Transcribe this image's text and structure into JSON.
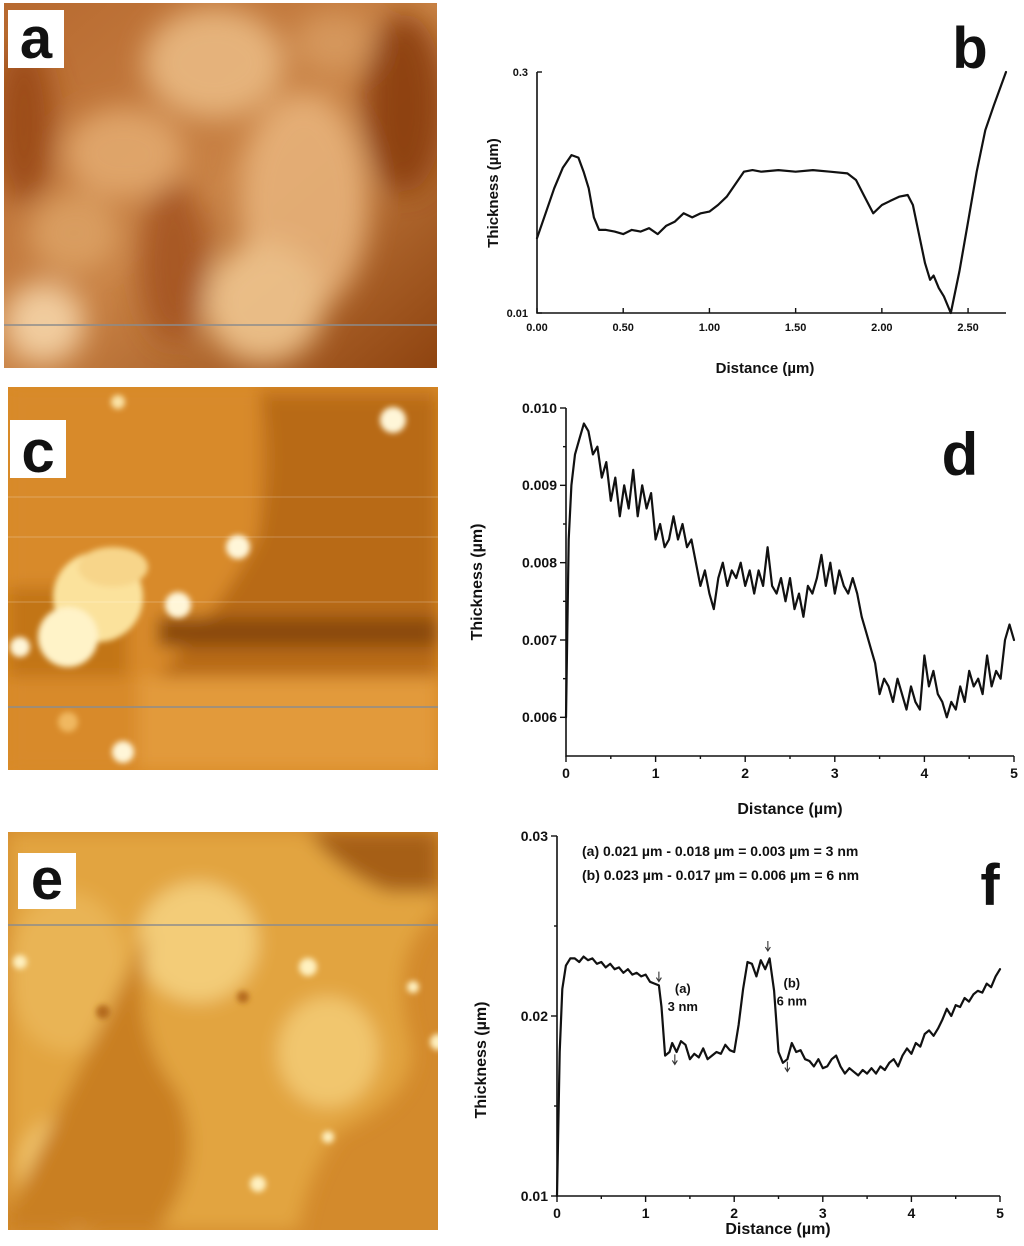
{
  "panels": {
    "a": {
      "letter": "a"
    },
    "c": {
      "letter": "c"
    },
    "e": {
      "letter": "e"
    }
  },
  "colors": {
    "afm_a_dark": "#8a3e0c",
    "afm_a_light": "#f3cfa0",
    "afm_c_dark": "#6e2f05",
    "afm_c_light": "#fff6d8",
    "afm_e_dark": "#7a3a06",
    "afm_e_light": "#fff1c0",
    "profile_line": "#8c8c8c",
    "curve": "#111111"
  },
  "chart_data": [
    {
      "id": "b",
      "letter": "b",
      "type": "line",
      "xlabel": "Distance (µm)",
      "ylabel": "Thickness (µm)",
      "xlim": [
        0,
        2.72
      ],
      "ylim": [
        0.01,
        0.3
      ],
      "xticks": [
        0,
        0.5,
        1.0,
        1.5,
        2.0,
        2.5
      ],
      "xtick_labels": [
        "0.00",
        "0.50",
        "1.00",
        "1.50",
        "2.00",
        "2.50"
      ],
      "yticks": [
        0.01,
        0.3
      ],
      "ytick_labels": [
        "0.01",
        "0.3"
      ],
      "series": [
        {
          "x": [
            0,
            0.05,
            0.1,
            0.15,
            0.2,
            0.24,
            0.27,
            0.3,
            0.33,
            0.36,
            0.4,
            0.45,
            0.5,
            0.55,
            0.6,
            0.65,
            0.7,
            0.75,
            0.8,
            0.85,
            0.9,
            0.95,
            1.0,
            1.05,
            1.1,
            1.15,
            1.2,
            1.25,
            1.3,
            1.4,
            1.5,
            1.6,
            1.7,
            1.8,
            1.85,
            1.9,
            1.95,
            2.0,
            2.05,
            2.1,
            2.15,
            2.18,
            2.22,
            2.25,
            2.28,
            2.3,
            2.33,
            2.36,
            2.4,
            2.45,
            2.5,
            2.55,
            2.6,
            2.65,
            2.72
          ],
          "y": [
            0.1,
            0.13,
            0.16,
            0.185,
            0.2,
            0.197,
            0.18,
            0.16,
            0.125,
            0.11,
            0.11,
            0.108,
            0.105,
            0.11,
            0.108,
            0.112,
            0.105,
            0.115,
            0.12,
            0.13,
            0.125,
            0.13,
            0.132,
            0.14,
            0.15,
            0.165,
            0.18,
            0.182,
            0.18,
            0.182,
            0.18,
            0.182,
            0.18,
            0.178,
            0.17,
            0.15,
            0.13,
            0.14,
            0.145,
            0.15,
            0.152,
            0.14,
            0.1,
            0.07,
            0.05,
            0.055,
            0.04,
            0.03,
            0.01,
            0.06,
            0.12,
            0.18,
            0.23,
            0.26,
            0.3
          ]
        }
      ]
    },
    {
      "id": "d",
      "letter": "d",
      "type": "line",
      "xlabel": "Distance (µm)",
      "ylabel": "Thickness (µm)",
      "xlim": [
        0,
        5
      ],
      "ylim": [
        0.0055,
        0.01
      ],
      "xticks": [
        0,
        1,
        2,
        3,
        4,
        5
      ],
      "xtick_labels": [
        "0",
        "1",
        "2",
        "3",
        "4",
        "5"
      ],
      "yticks": [
        0.006,
        0.007,
        0.008,
        0.009,
        0.01
      ],
      "ytick_labels": [
        "0.006",
        "0.007",
        "0.008",
        "0.009",
        "0.010"
      ],
      "series": [
        {
          "x": [
            0,
            0.03,
            0.06,
            0.1,
            0.15,
            0.2,
            0.25,
            0.3,
            0.35,
            0.4,
            0.45,
            0.5,
            0.55,
            0.6,
            0.65,
            0.7,
            0.75,
            0.8,
            0.85,
            0.9,
            0.95,
            1.0,
            1.05,
            1.1,
            1.15,
            1.2,
            1.25,
            1.3,
            1.35,
            1.4,
            1.45,
            1.5,
            1.55,
            1.6,
            1.65,
            1.7,
            1.75,
            1.8,
            1.85,
            1.9,
            1.95,
            2.0,
            2.05,
            2.1,
            2.15,
            2.2,
            2.25,
            2.3,
            2.35,
            2.4,
            2.45,
            2.5,
            2.55,
            2.6,
            2.65,
            2.7,
            2.75,
            2.8,
            2.85,
            2.9,
            2.95,
            3.0,
            3.05,
            3.1,
            3.15,
            3.2,
            3.25,
            3.3,
            3.35,
            3.4,
            3.45,
            3.5,
            3.55,
            3.6,
            3.65,
            3.7,
            3.75,
            3.8,
            3.85,
            3.9,
            3.95,
            4.0,
            4.05,
            4.1,
            4.15,
            4.2,
            4.25,
            4.3,
            4.35,
            4.4,
            4.45,
            4.5,
            4.55,
            4.6,
            4.65,
            4.7,
            4.75,
            4.8,
            4.85,
            4.9,
            4.95,
            5.0
          ],
          "y": [
            0.006,
            0.0083,
            0.009,
            0.0094,
            0.0096,
            0.0098,
            0.0097,
            0.0094,
            0.0095,
            0.0091,
            0.0093,
            0.0088,
            0.0091,
            0.0086,
            0.009,
            0.0087,
            0.0092,
            0.0086,
            0.009,
            0.0087,
            0.0089,
            0.0083,
            0.0085,
            0.0082,
            0.0083,
            0.0086,
            0.0083,
            0.0085,
            0.0082,
            0.0083,
            0.008,
            0.0077,
            0.0079,
            0.0076,
            0.0074,
            0.0078,
            0.008,
            0.0077,
            0.0079,
            0.0078,
            0.008,
            0.0077,
            0.0079,
            0.0076,
            0.0079,
            0.0077,
            0.0082,
            0.0077,
            0.0076,
            0.0078,
            0.0075,
            0.0078,
            0.0074,
            0.0076,
            0.0073,
            0.0077,
            0.0076,
            0.0078,
            0.0081,
            0.0077,
            0.008,
            0.0076,
            0.0079,
            0.0077,
            0.0076,
            0.0078,
            0.0076,
            0.0073,
            0.0071,
            0.0069,
            0.0067,
            0.0063,
            0.0065,
            0.0064,
            0.0062,
            0.0065,
            0.0063,
            0.0061,
            0.0064,
            0.0062,
            0.0061,
            0.0068,
            0.0064,
            0.0066,
            0.0063,
            0.0062,
            0.006,
            0.0062,
            0.0061,
            0.0064,
            0.0062,
            0.0066,
            0.0064,
            0.0065,
            0.0063,
            0.0068,
            0.0064,
            0.0066,
            0.0065,
            0.007,
            0.0072,
            0.007
          ]
        }
      ]
    },
    {
      "id": "f",
      "letter": "f",
      "type": "line",
      "xlabel": "Distance (µm)",
      "ylabel": "Thickness (µm)",
      "xlim": [
        0,
        5
      ],
      "ylim": [
        0.01,
        0.03
      ],
      "xticks": [
        0,
        1,
        2,
        3,
        4,
        5
      ],
      "xtick_labels": [
        "0",
        "1",
        "2",
        "3",
        "4",
        "5"
      ],
      "yticks": [
        0.01,
        0.02,
        0.03
      ],
      "ytick_labels": [
        "0.01",
        "0.02",
        "0.03"
      ],
      "annotations": [
        {
          "text": "(a)  0.021 µm - 0.018 µm = 0.003 µm = 3 nm"
        },
        {
          "text": "(b)  0.023 µm - 0.017 µm = 0.006 µm = 6 nm"
        }
      ],
      "labels": [
        {
          "name": "(a)",
          "value": "3 nm",
          "x": 1.42,
          "y": 0.0205
        },
        {
          "name": "(b)",
          "value": "6 nm",
          "x": 2.65,
          "y": 0.0208
        }
      ],
      "markers": [
        {
          "x": 1.15,
          "y": 0.0218
        },
        {
          "x": 1.33,
          "y": 0.0172
        },
        {
          "x": 2.38,
          "y": 0.0235
        },
        {
          "x": 2.6,
          "y": 0.0168
        }
      ],
      "series": [
        {
          "x": [
            0,
            0.03,
            0.06,
            0.1,
            0.15,
            0.2,
            0.25,
            0.3,
            0.35,
            0.4,
            0.45,
            0.5,
            0.55,
            0.6,
            0.65,
            0.7,
            0.75,
            0.8,
            0.85,
            0.9,
            0.95,
            1.0,
            1.05,
            1.1,
            1.15,
            1.18,
            1.22,
            1.27,
            1.3,
            1.35,
            1.4,
            1.45,
            1.5,
            1.55,
            1.6,
            1.65,
            1.7,
            1.75,
            1.8,
            1.85,
            1.9,
            1.95,
            2.0,
            2.05,
            2.1,
            2.15,
            2.2,
            2.25,
            2.3,
            2.35,
            2.4,
            2.45,
            2.5,
            2.55,
            2.6,
            2.65,
            2.7,
            2.75,
            2.8,
            2.85,
            2.9,
            2.95,
            3.0,
            3.05,
            3.1,
            3.15,
            3.2,
            3.25,
            3.3,
            3.35,
            3.4,
            3.45,
            3.5,
            3.55,
            3.6,
            3.65,
            3.7,
            3.75,
            3.8,
            3.85,
            3.9,
            3.95,
            4.0,
            4.05,
            4.1,
            4.15,
            4.2,
            4.25,
            4.3,
            4.35,
            4.4,
            4.45,
            4.5,
            4.55,
            4.6,
            4.65,
            4.7,
            4.75,
            4.8,
            4.85,
            4.9,
            4.95,
            5.0
          ],
          "y": [
            0.01,
            0.018,
            0.0215,
            0.0228,
            0.0232,
            0.0232,
            0.023,
            0.0233,
            0.0231,
            0.0232,
            0.0229,
            0.023,
            0.0227,
            0.0229,
            0.0226,
            0.0227,
            0.0224,
            0.0226,
            0.0223,
            0.0224,
            0.0222,
            0.0223,
            0.0219,
            0.0218,
            0.0217,
            0.0205,
            0.0178,
            0.018,
            0.0185,
            0.018,
            0.0186,
            0.0184,
            0.0176,
            0.0179,
            0.0177,
            0.0182,
            0.0176,
            0.0178,
            0.018,
            0.0179,
            0.0184,
            0.0181,
            0.018,
            0.0195,
            0.0215,
            0.023,
            0.0229,
            0.0222,
            0.0231,
            0.0226,
            0.0232,
            0.0214,
            0.018,
            0.0174,
            0.0176,
            0.0185,
            0.018,
            0.0181,
            0.0176,
            0.0175,
            0.0172,
            0.0176,
            0.0171,
            0.0172,
            0.0176,
            0.0178,
            0.0172,
            0.0168,
            0.0171,
            0.0169,
            0.0167,
            0.017,
            0.0168,
            0.0171,
            0.0168,
            0.0172,
            0.017,
            0.0174,
            0.0176,
            0.0172,
            0.0178,
            0.0182,
            0.0179,
            0.0185,
            0.0183,
            0.019,
            0.0192,
            0.0189,
            0.0193,
            0.0198,
            0.0204,
            0.02,
            0.0206,
            0.0205,
            0.021,
            0.0208,
            0.0212,
            0.0214,
            0.0213,
            0.0218,
            0.0216,
            0.0222,
            0.0226
          ]
        }
      ]
    }
  ]
}
